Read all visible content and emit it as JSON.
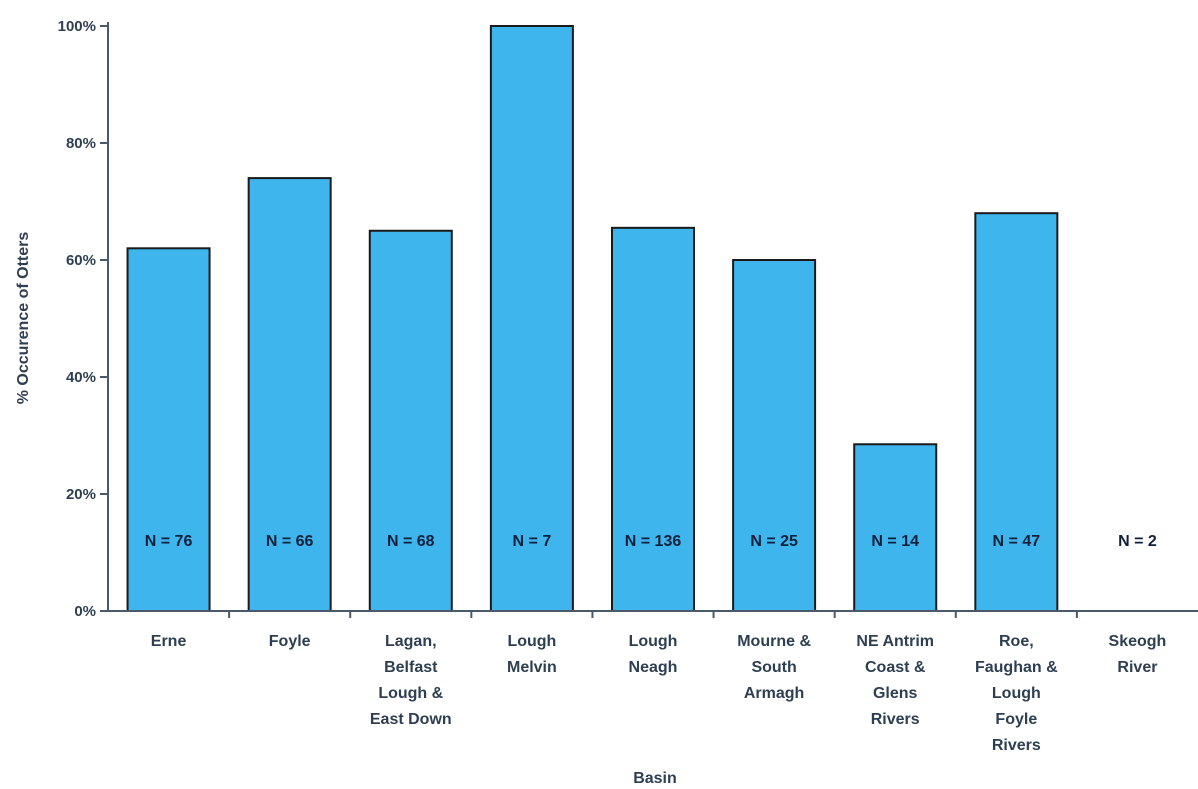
{
  "chart_data": {
    "type": "bar",
    "title": "",
    "xlabel": "Basin",
    "ylabel": "% Occurence of Otters",
    "ylim": [
      0,
      100
    ],
    "yticks": [
      0,
      20,
      40,
      60,
      80,
      100
    ],
    "ytick_suffix": "%",
    "grid": false,
    "categories": [
      "Erne",
      "Foyle",
      "Lagan, Belfast Lough & East Down",
      "Lough Melvin",
      "Lough Neagh",
      "Mourne & South Armagh",
      "NE Antrim Coast & Glens Rivers",
      "Roe, Faughan & Lough Foyle Rivers",
      "Skeogh River"
    ],
    "category_label_lines": [
      [
        "Erne"
      ],
      [
        "Foyle"
      ],
      [
        "Lagan,",
        "Belfast",
        "Lough &",
        "East Down"
      ],
      [
        "Lough",
        "Melvin"
      ],
      [
        "Lough",
        "Neagh"
      ],
      [
        "Mourne &",
        "South",
        "Armagh"
      ],
      [
        "NE Antrim",
        "Coast &",
        "Glens",
        "Rivers"
      ],
      [
        "Roe,",
        "Faughan &",
        "Lough",
        "Foyle",
        "Rivers"
      ],
      [
        "Skeogh",
        "River"
      ]
    ],
    "values": [
      62,
      74,
      65,
      100,
      65.5,
      60,
      28.5,
      68,
      0
    ],
    "annotations": [
      "N = 76",
      "N = 66",
      "N = 68",
      "N = 7",
      "N = 136",
      "N = 25",
      "N = 14",
      "N = 47",
      "N = 2"
    ],
    "colors": {
      "bar": "#3fb5ee",
      "bar_edge": "#1a1a1a",
      "axis": "#4a5a6a"
    }
  }
}
